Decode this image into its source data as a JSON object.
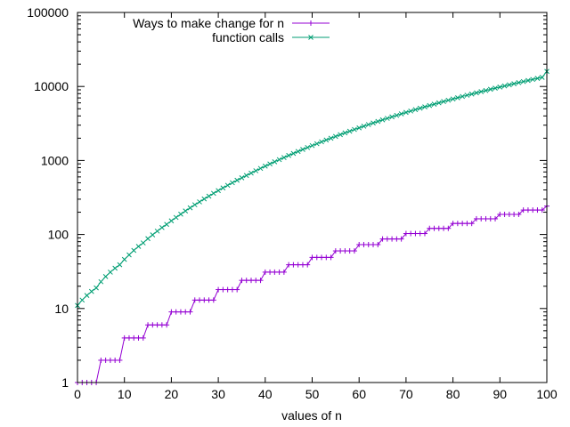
{
  "chart_data": {
    "type": "line",
    "title": "",
    "xlabel": "values of n",
    "ylabel": "",
    "xlim": [
      0,
      100
    ],
    "ylim": [
      1,
      100000
    ],
    "yscale": "log",
    "grid": false,
    "legend_position": "top-right",
    "xticks": [
      0,
      10,
      20,
      30,
      40,
      50,
      60,
      70,
      80,
      90,
      100
    ],
    "xtick_labels": [
      "0",
      "10",
      "20",
      "30",
      "40",
      "50",
      "60",
      "70",
      "80",
      "90",
      "100"
    ],
    "yticks": [
      1,
      10,
      100,
      1000,
      10000,
      100000
    ],
    "ytick_labels": [
      "1",
      "10",
      "100",
      "1000",
      "10000",
      "100000"
    ],
    "x": [
      0,
      1,
      2,
      3,
      4,
      5,
      6,
      7,
      8,
      9,
      10,
      11,
      12,
      13,
      14,
      15,
      16,
      17,
      18,
      19,
      20,
      21,
      22,
      23,
      24,
      25,
      26,
      27,
      28,
      29,
      30,
      31,
      32,
      33,
      34,
      35,
      36,
      37,
      38,
      39,
      40,
      41,
      42,
      43,
      44,
      45,
      46,
      47,
      48,
      49,
      50,
      51,
      52,
      53,
      54,
      55,
      56,
      57,
      58,
      59,
      60,
      61,
      62,
      63,
      64,
      65,
      66,
      67,
      68,
      69,
      70,
      71,
      72,
      73,
      74,
      75,
      76,
      77,
      78,
      79,
      80,
      81,
      82,
      83,
      84,
      85,
      86,
      87,
      88,
      89,
      90,
      91,
      92,
      93,
      94,
      95,
      96,
      97,
      98,
      99,
      100
    ],
    "series": [
      {
        "name": "Ways to make change for n",
        "color": "#9400d3",
        "marker": "plus",
        "values": [
          1,
          1,
          1,
          1,
          1,
          2,
          2,
          2,
          2,
          2,
          4,
          4,
          4,
          4,
          4,
          6,
          6,
          6,
          6,
          6,
          9,
          9,
          9,
          9,
          9,
          13,
          13,
          13,
          13,
          13,
          18,
          18,
          18,
          18,
          18,
          24,
          24,
          24,
          24,
          24,
          31,
          31,
          31,
          31,
          31,
          39,
          39,
          39,
          39,
          39,
          49,
          49,
          49,
          49,
          49,
          60,
          60,
          60,
          60,
          60,
          73,
          73,
          73,
          73,
          73,
          87,
          87,
          87,
          87,
          87,
          103,
          103,
          103,
          103,
          103,
          121,
          121,
          121,
          121,
          121,
          141,
          141,
          141,
          141,
          141,
          163,
          163,
          163,
          163,
          163,
          187,
          187,
          187,
          187,
          187,
          214,
          214,
          214,
          214,
          214,
          242
        ]
      },
      {
        "name": "function calls",
        "color": "#009e73",
        "marker": "cross",
        "values": [
          11,
          13,
          15,
          17,
          19,
          23,
          27,
          31,
          35,
          39,
          46,
          53,
          61,
          69,
          77,
          88,
          99,
          111,
          124,
          137,
          153,
          170,
          188,
          208,
          229,
          252,
          276,
          302,
          330,
          360,
          392,
          426,
          462,
          500,
          540,
          583,
          628,
          676,
          727,
          781,
          838,
          898,
          961,
          1027,
          1096,
          1169,
          1245,
          1325,
          1409,
          1497,
          1589,
          1685,
          1786,
          1891,
          2001,
          2115,
          2234,
          2358,
          2487,
          2621,
          2760,
          2904,
          3054,
          3209,
          3370,
          3536,
          3708,
          3886,
          4070,
          4260,
          4456,
          4658,
          4867,
          5082,
          5304,
          5532,
          5767,
          6009,
          6258,
          6514,
          6777,
          7047,
          7324,
          7609,
          7901,
          8201,
          8509,
          8825,
          9149,
          9481,
          9821,
          10170,
          10527,
          10893,
          11267,
          11650,
          12042,
          12443,
          12853,
          13272,
          16000
        ]
      }
    ]
  }
}
